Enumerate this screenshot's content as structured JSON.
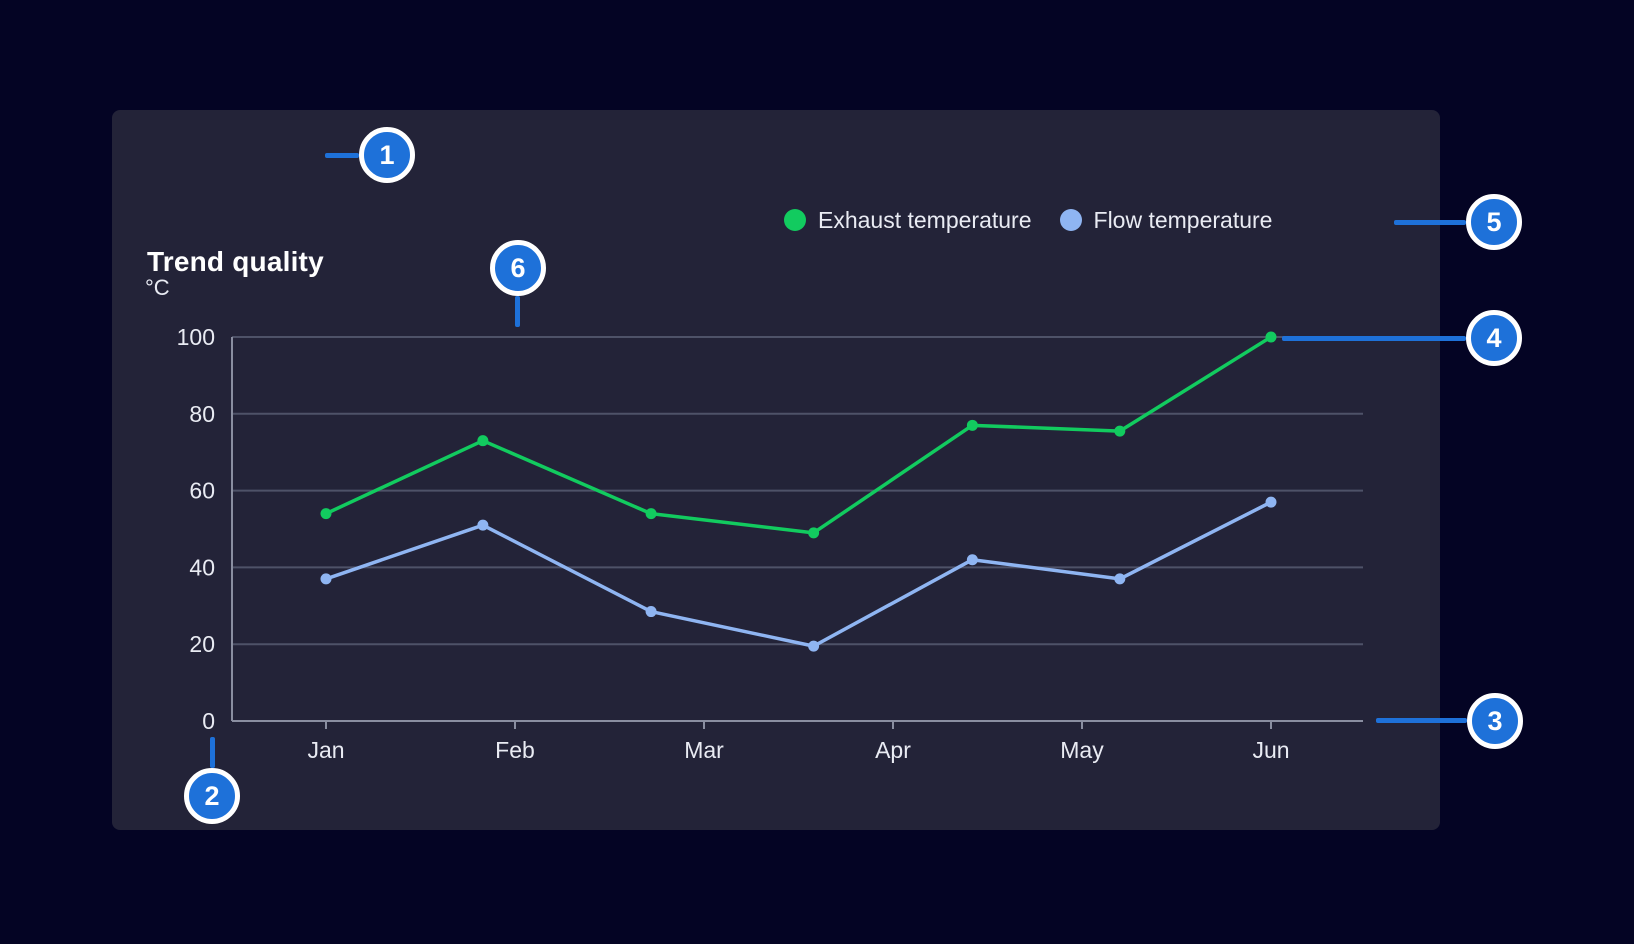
{
  "card": {
    "title": "Trend quality"
  },
  "legend": {
    "items": [
      {
        "label": "Exhaust temperature",
        "color": "#12CB5F"
      },
      {
        "label": "Flow temperature",
        "color": "#8FB5F2"
      }
    ]
  },
  "annotations": {
    "markers": [
      {
        "number": "1"
      },
      {
        "number": "2"
      },
      {
        "number": "3"
      },
      {
        "number": "4"
      },
      {
        "number": "5"
      },
      {
        "number": "6"
      }
    ]
  },
  "chart_data": {
    "type": "line",
    "title": "Trend quality",
    "grid": true,
    "legend_position": "top-right",
    "y_axis": {
      "unit_label": "°C",
      "ticks": [
        0,
        20,
        40,
        60,
        80,
        100
      ],
      "range": [
        0,
        100
      ]
    },
    "x_axis": {
      "tick_labels": [
        "Jan",
        "Feb",
        "Mar",
        "Apr",
        "May",
        "Jun"
      ],
      "range_months": [
        0,
        5
      ]
    },
    "series": [
      {
        "name": "Exhaust temperature",
        "color": "#12CB5F",
        "x_months": [
          0,
          0.83,
          1.72,
          2.58,
          3.42,
          4.2,
          5
        ],
        "values": [
          54,
          73,
          54,
          49,
          77,
          75.5,
          100
        ]
      },
      {
        "name": "Flow temperature",
        "color": "#8FB5F2",
        "x_months": [
          0,
          0.83,
          1.72,
          2.58,
          3.42,
          4.2,
          5
        ],
        "values": [
          37,
          51,
          28.5,
          19.5,
          42,
          37,
          57
        ]
      }
    ]
  },
  "colors": {
    "page_bg": "#040424",
    "card_bg": "#232338",
    "grid": "#4E5268",
    "axis": "#8A8EA1",
    "text": "#E9EBF3",
    "title": "#FFFFFF",
    "annotation": "#1E71D9"
  }
}
